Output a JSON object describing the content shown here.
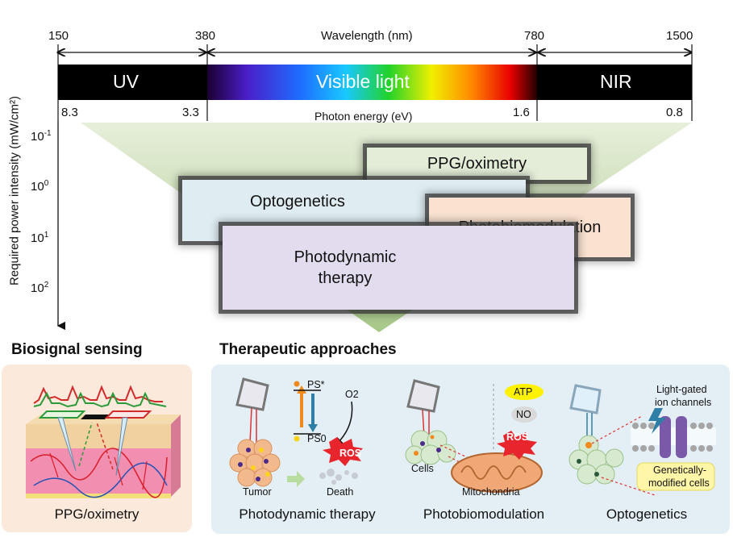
{
  "spectrum": {
    "axis_title": "Wavelength (nm)",
    "wavelength_ticks": [
      "150",
      "380",
      "780",
      "1500"
    ],
    "bands": [
      "UV",
      "Visible light",
      "NIR"
    ],
    "energy_title": "Photon energy (eV)",
    "energy_ticks": [
      "8.3",
      "3.3",
      "1.6",
      "0.8"
    ]
  },
  "intensity_axis": {
    "label": "Required power intensity (mW/cm²)",
    "ticks": [
      {
        "base": "10",
        "exp": "-1"
      },
      {
        "base": "10",
        "exp": "0"
      },
      {
        "base": "10",
        "exp": "1"
      },
      {
        "base": "10",
        "exp": "2"
      }
    ]
  },
  "application_boxes": {
    "ppg": "PPG/oximetry",
    "optogenetics": "Optogenetics",
    "photobiomodulation": "Photobiomodulation",
    "pdt_line1": "Photodynamic",
    "pdt_line2": "therapy"
  },
  "sections": {
    "biosignal_title": "Biosignal sensing",
    "therapeutic_title": "Therapeutic approaches"
  },
  "panels": {
    "biosignal_caption": "PPG/oximetry",
    "pdt": {
      "caption": "Photodynamic therapy",
      "ps_excited": "PS*",
      "ps_ground": "PS0",
      "oxygen": "O2",
      "ros": "ROS",
      "tumor": "Tumor",
      "death": "Death"
    },
    "pbm": {
      "caption": "Photobiomodulation",
      "atp": "ATP",
      "no": "NO",
      "ros": "ROS",
      "cells": "Cells",
      "mitochondria": "Mitochondria"
    },
    "opto": {
      "caption": "Optogenetics",
      "channels_line1": "Light-gated",
      "channels_line2": "ion channels",
      "modified_line1": "Genetically-",
      "modified_line2": "modified cells"
    }
  },
  "colors": {
    "ppg_box": "#e3edd8",
    "opto_box": "#dfedf3",
    "pbm_box": "#fbe2d0",
    "pdt_box": "#e3dcef",
    "biosignal_panel": "#fbe9dc",
    "therapeutic_panel": "#e4eff5",
    "ros_red": "#e8242c",
    "atp_yellow": "#fff200"
  }
}
